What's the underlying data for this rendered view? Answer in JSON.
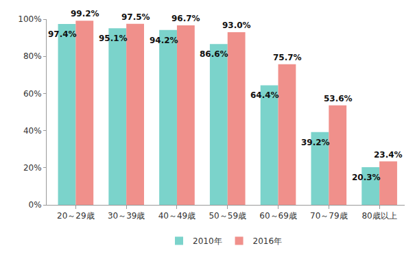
{
  "chart_data": {
    "type": "bar",
    "categories": [
      "20～29歳",
      "30～39歳",
      "40～49歳",
      "50～59歳",
      "60～69歳",
      "70～79歳",
      "80歳以上"
    ],
    "series": [
      {
        "name": "2010年",
        "color": "#7bd3cb",
        "values": [
          97.4,
          95.1,
          94.2,
          86.6,
          64.4,
          39.2,
          20.3
        ],
        "value_labels": [
          "97.4%",
          "95.1%",
          "94.2%",
          "86.6%",
          "64.4%",
          "39.2%",
          "20.3%"
        ]
      },
      {
        "name": "2016年",
        "color": "#f0908b",
        "values": [
          99.2,
          97.5,
          96.7,
          93.0,
          75.7,
          53.6,
          23.4
        ],
        "value_labels": [
          "99.2%",
          "97.5%",
          "96.7%",
          "93.0%",
          "75.7%",
          "53.6%",
          "23.4%"
        ]
      }
    ],
    "ylim": [
      0,
      100
    ],
    "yticks": [
      {
        "value": 0,
        "label": "0%"
      },
      {
        "value": 20,
        "label": "20%"
      },
      {
        "value": 40,
        "label": "40%"
      },
      {
        "value": 60,
        "label": "60%"
      },
      {
        "value": 80,
        "label": "80%"
      },
      {
        "value": 100,
        "label": "100%"
      }
    ],
    "grid": false,
    "legend": "bottom",
    "data_labels": true
  }
}
